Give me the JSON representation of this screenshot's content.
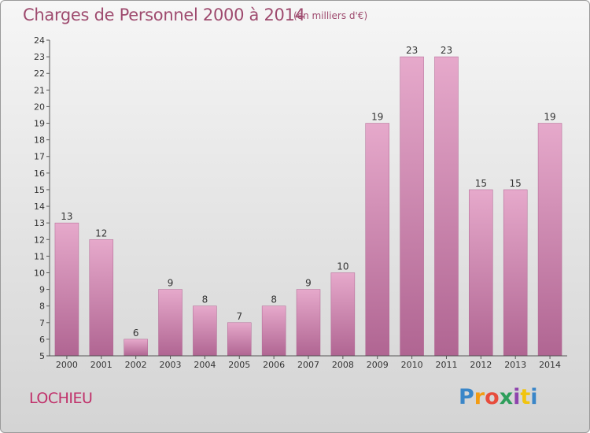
{
  "header": {
    "title": "Charges de Personnel 2000 à 2014",
    "subtitle": "(en milliers d'€)"
  },
  "footer": {
    "commune": "LOCHIEU",
    "brand": "Proxiti",
    "brand_colors": [
      "#3a86c8",
      "#f39c12",
      "#e74c3c",
      "#2e9e5b",
      "#8e44ad",
      "#f1c40f",
      "#3a86c8"
    ]
  },
  "colors": {
    "bar": "#d48ab2",
    "bar_light": "#e6a9cb",
    "bar_dark": "#b06592",
    "axis": "#555555",
    "text": "#333333"
  },
  "chart_data": {
    "type": "bar",
    "categories": [
      "2000",
      "2001",
      "2002",
      "2003",
      "2004",
      "2005",
      "2006",
      "2007",
      "2008",
      "2009",
      "2010",
      "2011",
      "2012",
      "2013",
      "2014"
    ],
    "values": [
      13,
      12,
      6,
      9,
      8,
      7,
      8,
      9,
      10,
      19,
      23,
      23,
      15,
      15,
      19
    ],
    "data_labels": [
      "13",
      "12",
      "6",
      "9",
      "8",
      "7",
      "8",
      "9",
      "10",
      "19",
      "23",
      "23",
      "15",
      "15",
      "19"
    ],
    "yticks": [
      "5",
      "6",
      "7",
      "8",
      "9",
      "10",
      "11",
      "12",
      "13",
      "14",
      "15",
      "16",
      "17",
      "18",
      "19",
      "20",
      "21",
      "22",
      "23",
      "24"
    ],
    "ylim": [
      5,
      24
    ],
    "grid": false,
    "legend": "none"
  }
}
